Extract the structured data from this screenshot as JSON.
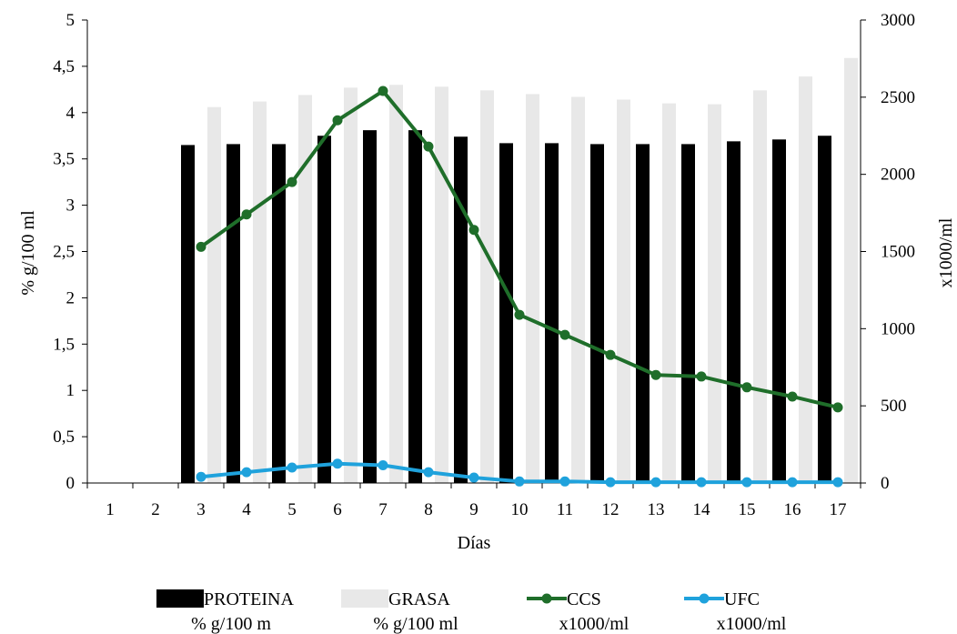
{
  "chart_data": {
    "type": "bar",
    "xlabel": "Días",
    "ylabel": "% g/100 ml",
    "y2label": "x1000/ml",
    "ylim": [
      0,
      5
    ],
    "y2lim": [
      0,
      3000
    ],
    "yticks": [
      "0",
      "0,5",
      "1",
      "1,5",
      "2",
      "2,5",
      "3",
      "3,5",
      "4",
      "4,5",
      "5"
    ],
    "y2ticks": [
      "0",
      "500",
      "1000",
      "1500",
      "2000",
      "2500",
      "3000"
    ],
    "categories": [
      "1",
      "2",
      "3",
      "4",
      "5",
      "6",
      "7",
      "8",
      "9",
      "10",
      "11",
      "12",
      "13",
      "14",
      "15",
      "16",
      "17"
    ],
    "grid": false,
    "legend_position": "bottom",
    "series": [
      {
        "name": "PROTEINA % g/100 m",
        "legend_lines": [
          "PROTEINA",
          "% g/100 m"
        ],
        "kind": "bar",
        "axis": "left",
        "color": "#000000",
        "values": [
          null,
          null,
          3.65,
          3.66,
          3.66,
          3.75,
          3.81,
          3.81,
          3.74,
          3.67,
          3.67,
          3.66,
          3.66,
          3.66,
          3.69,
          3.71,
          3.75
        ]
      },
      {
        "name": "GRASA % g/100 ml",
        "legend_lines": [
          "GRASA",
          "% g/100 ml"
        ],
        "kind": "bar",
        "axis": "left",
        "color": "#e8e8e8",
        "values": [
          null,
          null,
          4.06,
          4.12,
          4.19,
          4.27,
          4.3,
          4.28,
          4.24,
          4.2,
          4.17,
          4.14,
          4.1,
          4.09,
          4.24,
          4.39,
          4.59
        ]
      },
      {
        "name": "CCS x1000/ml",
        "legend_lines": [
          "CCS",
          "x1000/ml"
        ],
        "kind": "line",
        "axis": "right",
        "color": "#1f6e2a",
        "values": [
          null,
          null,
          1530,
          1740,
          1950,
          2350,
          2540,
          2180,
          1640,
          1090,
          960,
          830,
          700,
          690,
          620,
          560,
          490
        ]
      },
      {
        "name": "UFC x1000/ml",
        "legend_lines": [
          "UFC",
          "x1000/ml"
        ],
        "kind": "line",
        "axis": "right",
        "color": "#1fa2dc",
        "values": [
          null,
          null,
          40,
          70,
          100,
          125,
          115,
          70,
          35,
          10,
          10,
          5,
          5,
          5,
          5,
          5,
          5
        ]
      }
    ]
  }
}
